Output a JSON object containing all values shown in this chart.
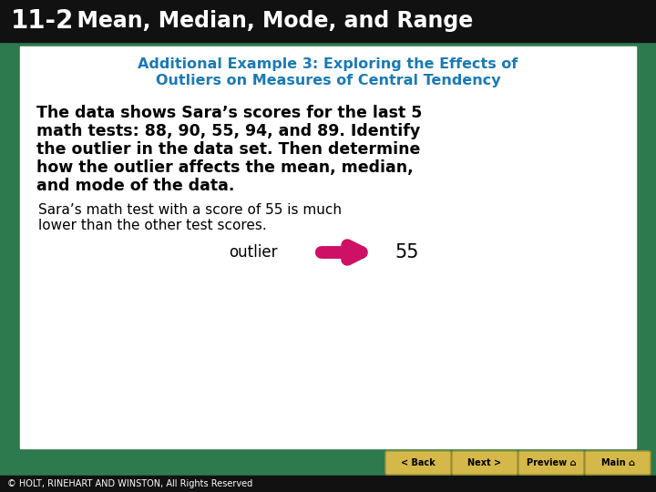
{
  "header_bg": "#111111",
  "header_text_num": "11-2",
  "header_text_title": "  Mean, Median, Mode, and Range",
  "header_text_color": "#ffffff",
  "header_fontsize": 17,
  "header_num_fontsize": 20,
  "green_bg": "#2d7a4e",
  "white_bg": "#ffffff",
  "subtitle_line1": "Additional Example 3: Exploring the Effects of",
  "subtitle_line2": "Outliers on Measures of Central Tendency",
  "subtitle_color": "#1a7ab5",
  "subtitle_fontsize": 11.5,
  "body_lines": [
    "The data shows Sara’s scores for the last 5",
    "math tests: 88, 90, 55, 94, and 89. Identify",
    "the outlier in the data set. Then determine",
    "how the outlier affects the mean, median,",
    "and mode of the data."
  ],
  "body_color": "#000000",
  "body_fontsize": 12.5,
  "note_lines": [
    "Sara’s math test with a score of 55 is much",
    "lower than the other test scores."
  ],
  "note_color": "#000000",
  "note_fontsize": 11.0,
  "outlier_label": "outlier",
  "outlier_value": "55",
  "outlier_fontsize": 12,
  "arrow_color": "#cc1166",
  "footer_bg": "#111111",
  "footer_text": "© HOLT, RINEHART AND WINSTON, All Rights Reserved",
  "footer_color": "#ffffff",
  "footer_fontsize": 7,
  "btn_bg": "#d4b84a",
  "btn_labels": [
    "< Back",
    "Next >",
    "Preview ⌂",
    "Main ⌂"
  ],
  "btn_color": "#000000",
  "btn_fontsize": 7
}
